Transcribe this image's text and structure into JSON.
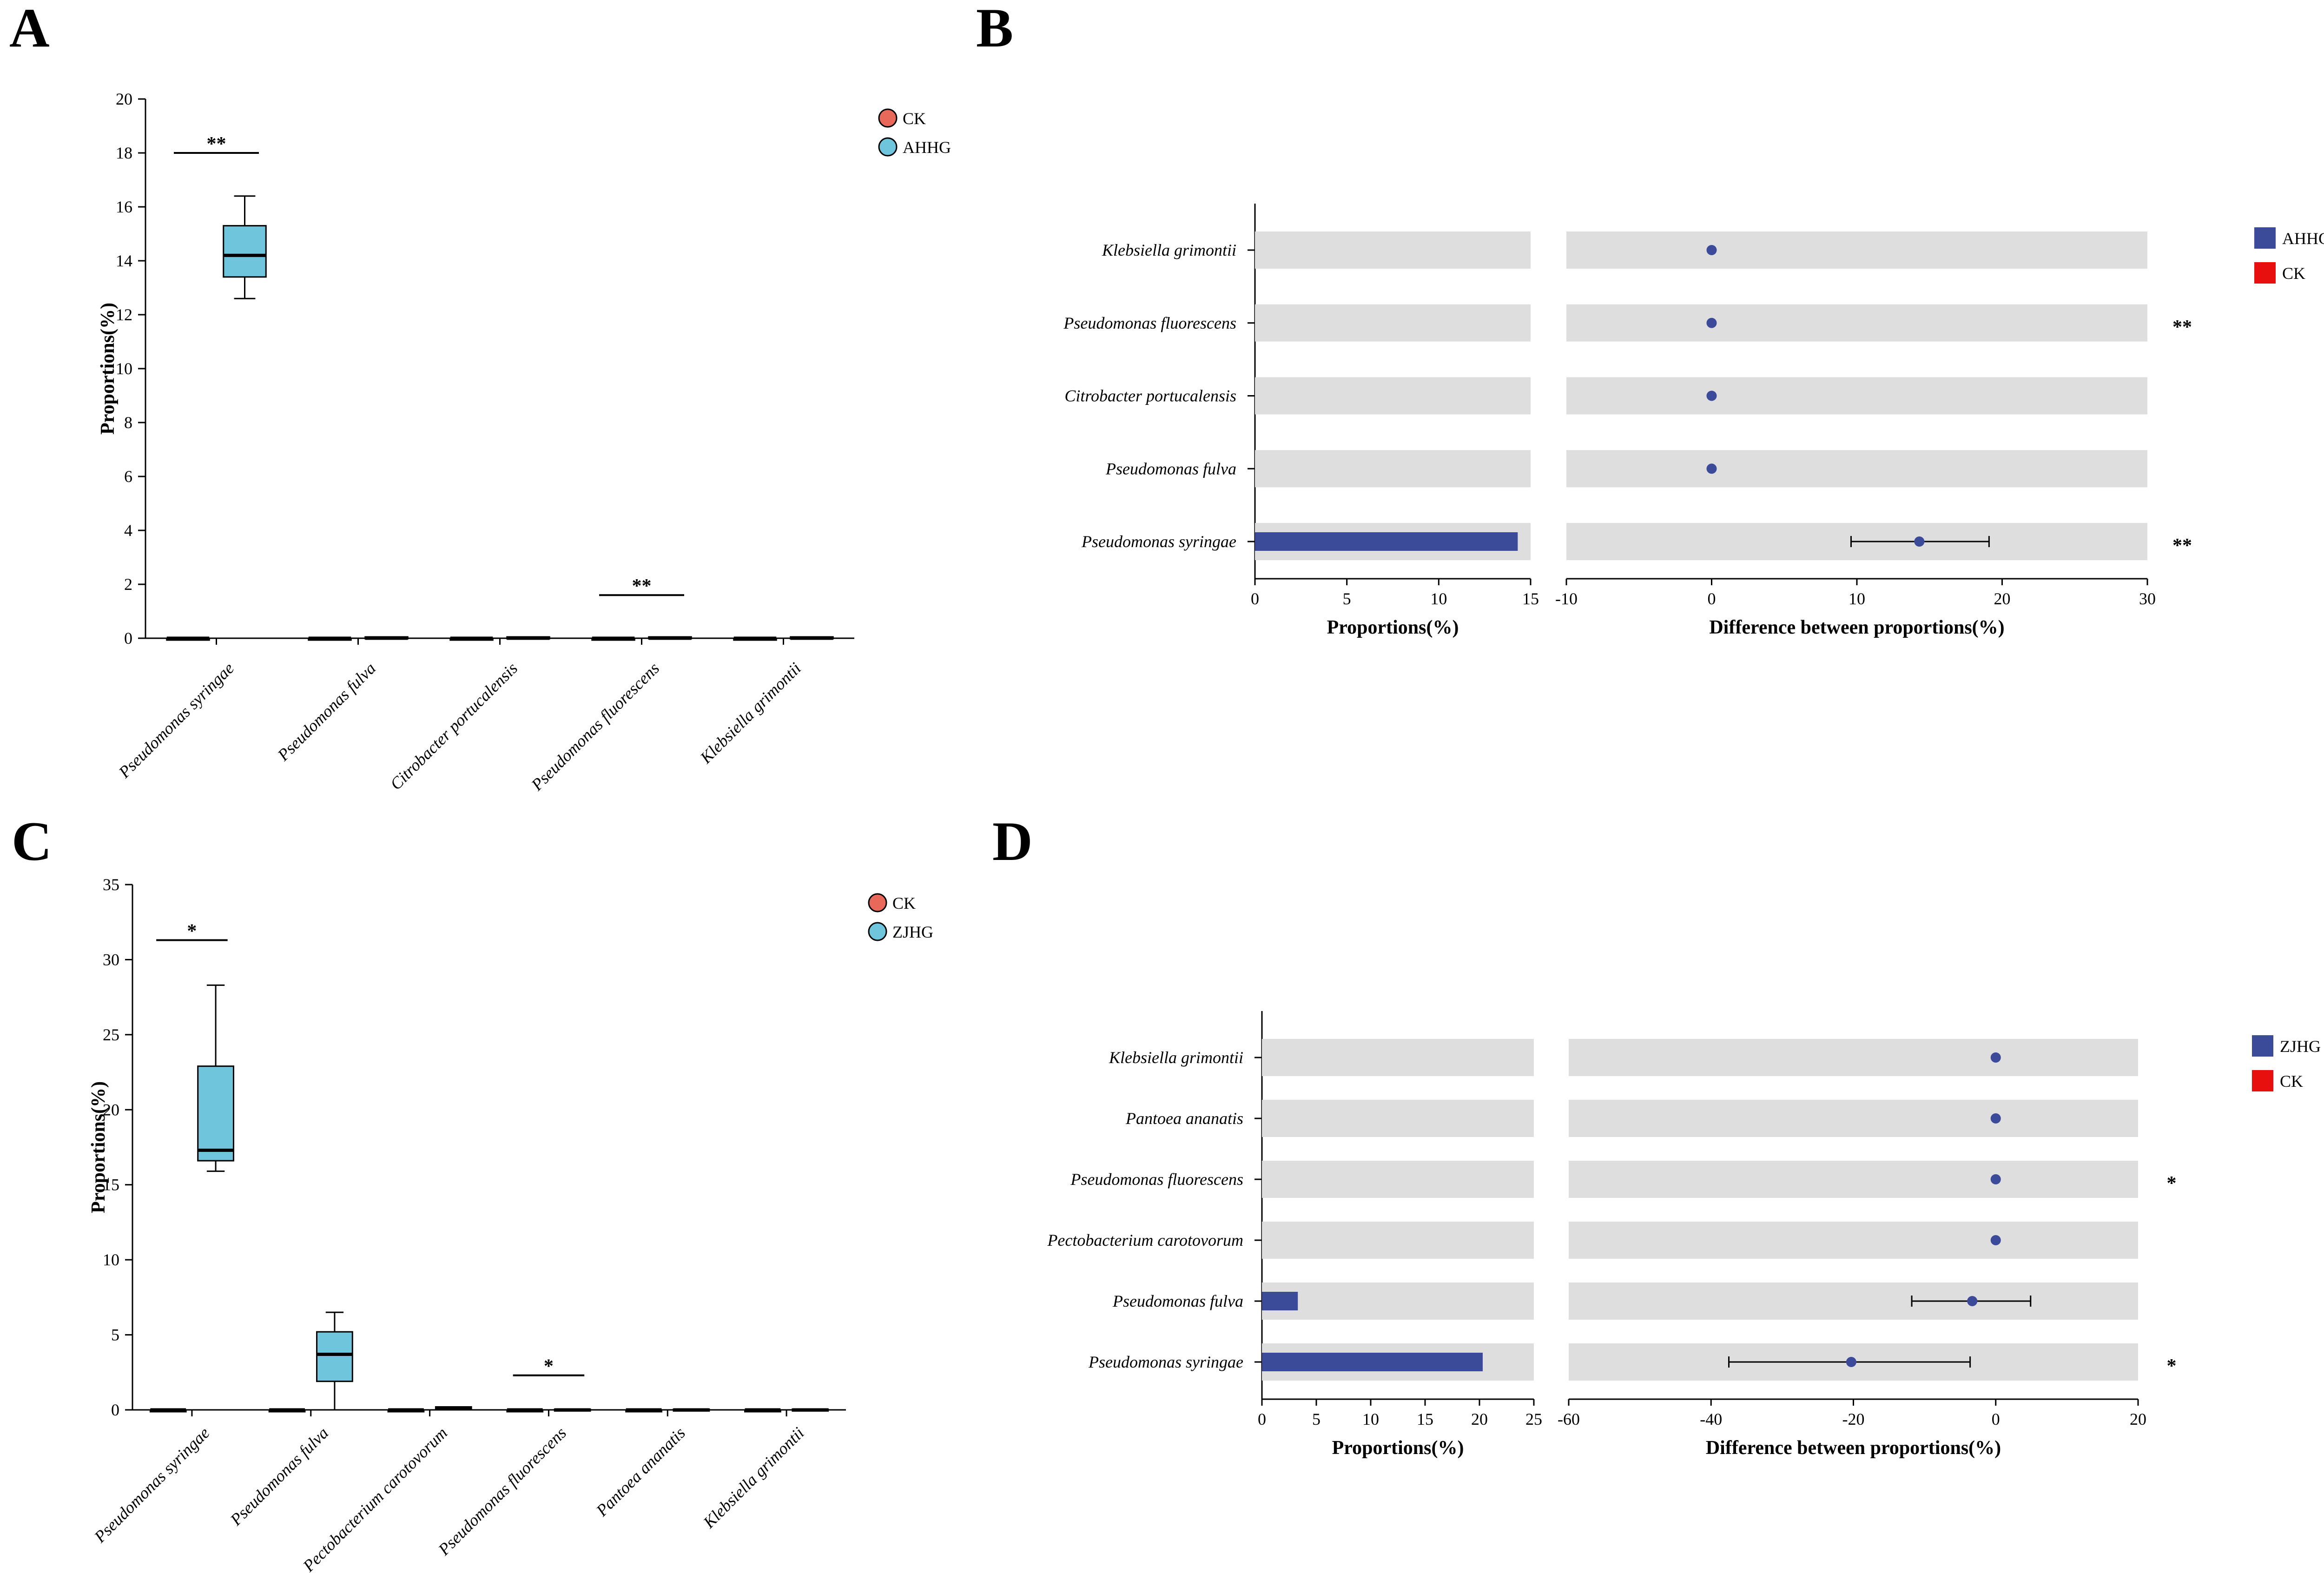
{
  "chart_data": [
    {
      "panel": "A",
      "type": "box",
      "title": "",
      "xlabel": "",
      "ylabel": "Proportions(%)",
      "ylim": [
        0,
        20
      ],
      "yticks": [
        0,
        2,
        4,
        6,
        8,
        10,
        12,
        14,
        16,
        18,
        20
      ],
      "categories": [
        "Pseudomonas syringae",
        "Pseudomonas fulva",
        "Citrobacter portucalensis",
        "Pseudomonas fluorescens",
        "Klebsiella grimontii"
      ],
      "legend": {
        "position": "top-right",
        "entries": [
          {
            "name": "CK",
            "color": "#e8695a"
          },
          {
            "name": "AHHG",
            "color": "#6fc5dc"
          }
        ]
      },
      "series": [
        {
          "name": "CK",
          "color": "#e8695a",
          "boxes": [
            {
              "min": 0,
              "q1": 0,
              "median": 0,
              "q3": 0,
              "max": 0
            },
            {
              "min": 0,
              "q1": 0,
              "median": 0,
              "q3": 0,
              "max": 0
            },
            {
              "min": 0,
              "q1": 0,
              "median": 0,
              "q3": 0,
              "max": 0
            },
            {
              "min": 0,
              "q1": 0,
              "median": 0,
              "q3": 0,
              "max": 0
            },
            {
              "min": 0,
              "q1": 0,
              "median": 0,
              "q3": 0,
              "max": 0
            }
          ]
        },
        {
          "name": "AHHG",
          "color": "#6fc5dc",
          "boxes": [
            {
              "min": 12.6,
              "q1": 13.4,
              "median": 14.2,
              "q3": 15.3,
              "max": 16.4
            },
            {
              "min": 0,
              "q1": 0,
              "median": 0,
              "q3": 0.05,
              "max": 0.05
            },
            {
              "min": 0,
              "q1": 0,
              "median": 0,
              "q3": 0.05,
              "max": 0.05
            },
            {
              "min": 0,
              "q1": 0,
              "median": 0,
              "q3": 0.05,
              "max": 0.05
            },
            {
              "min": 0,
              "q1": 0,
              "median": 0,
              "q3": 0.05,
              "max": 0.05
            }
          ]
        }
      ],
      "significance": [
        {
          "category": "Pseudomonas syringae",
          "label": "**",
          "y": 18
        },
        {
          "category": "Pseudomonas fluorescens",
          "label": "**",
          "y": 1.6
        }
      ]
    },
    {
      "panel": "B",
      "type": "extended-error-bar",
      "title": "",
      "categories": [
        "Klebsiella grimontii",
        "Pseudomonas fluorescens",
        "Citrobacter portucalensis",
        "Pseudomonas fulva",
        "Pseudomonas syringae"
      ],
      "left": {
        "xlabel": "Proportions(%)",
        "xlim": [
          0,
          15
        ],
        "xticks": [
          0,
          5,
          10,
          15
        ],
        "series": [
          {
            "name": "AHHG",
            "color": "#3c4a9a",
            "values": [
              0,
              0,
              0,
              0,
              14.3
            ]
          },
          {
            "name": "CK",
            "color": "#e8100f",
            "values": [
              0,
              0,
              0,
              0,
              0
            ]
          }
        ]
      },
      "right": {
        "xlabel": "Difference between proportions(%)",
        "xlim": [
          -10,
          30
        ],
        "xticks": [
          -10,
          0,
          10,
          20,
          30
        ],
        "points": [
          {
            "diff": 0,
            "ci": [
              0,
              0
            ]
          },
          {
            "diff": 0,
            "ci": [
              0,
              0
            ]
          },
          {
            "diff": 0,
            "ci": [
              0,
              0
            ]
          },
          {
            "diff": 0,
            "ci": [
              0,
              0
            ]
          },
          {
            "diff": 14.3,
            "ci": [
              9.6,
              19.1
            ]
          }
        ]
      },
      "significance": [
        "",
        "**",
        "",
        "",
        "**"
      ],
      "legend": {
        "position": "top-right",
        "entries": [
          {
            "name": "AHHG",
            "color": "#3c4a9a"
          },
          {
            "name": "CK",
            "color": "#e8100f"
          }
        ]
      }
    },
    {
      "panel": "C",
      "type": "box",
      "title": "",
      "xlabel": "",
      "ylabel": "Proportions(%)",
      "ylim": [
        0,
        35
      ],
      "yticks": [
        0,
        5,
        10,
        15,
        20,
        25,
        30,
        35
      ],
      "categories": [
        "Pseudomonas syringae",
        "Pseudomonas fulva",
        "Pectobacterium carotovorum",
        "Pseudomonas fluorescens",
        "Pantoea ananatis",
        "Klebsiella grimontii"
      ],
      "legend": {
        "position": "top-right",
        "entries": [
          {
            "name": "CK",
            "color": "#e8695a"
          },
          {
            "name": "ZJHG",
            "color": "#6fc5dc"
          }
        ]
      },
      "series": [
        {
          "name": "CK",
          "color": "#e8695a",
          "boxes": [
            {
              "min": 0,
              "q1": 0,
              "median": 0,
              "q3": 0,
              "max": 0
            },
            {
              "min": 0,
              "q1": 0,
              "median": 0,
              "q3": 0,
              "max": 0
            },
            {
              "min": 0,
              "q1": 0,
              "median": 0,
              "q3": 0,
              "max": 0
            },
            {
              "min": 0,
              "q1": 0,
              "median": 0,
              "q3": 0,
              "max": 0
            },
            {
              "min": 0,
              "q1": 0,
              "median": 0,
              "q3": 0,
              "max": 0
            },
            {
              "min": 0,
              "q1": 0,
              "median": 0,
              "q3": 0,
              "max": 0
            }
          ]
        },
        {
          "name": "ZJHG",
          "color": "#6fc5dc",
          "boxes": [
            {
              "min": 15.9,
              "q1": 16.6,
              "median": 17.3,
              "q3": 22.9,
              "max": 28.3
            },
            {
              "min": 0,
              "q1": 1.9,
              "median": 3.7,
              "q3": 5.2,
              "max": 6.5
            },
            {
              "min": 0,
              "q1": 0.05,
              "median": 0.1,
              "q3": 0.2,
              "max": 0.2
            },
            {
              "min": 0,
              "q1": 0,
              "median": 0,
              "q3": 0.05,
              "max": 0.05
            },
            {
              "min": 0,
              "q1": 0,
              "median": 0,
              "q3": 0.05,
              "max": 0.05
            },
            {
              "min": 0,
              "q1": 0,
              "median": 0,
              "q3": 0.05,
              "max": 0.05
            }
          ]
        }
      ],
      "significance": [
        {
          "category": "Pseudomonas syringae",
          "label": "*",
          "y": 31.3
        },
        {
          "category": "Pseudomonas fluorescens",
          "label": "*",
          "y": 2.3
        }
      ]
    },
    {
      "panel": "D",
      "type": "extended-error-bar",
      "title": "",
      "categories": [
        "Klebsiella grimontii",
        "Pantoea ananatis",
        "Pseudomonas fluorescens",
        "Pectobacterium carotovorum",
        "Pseudomonas fulva",
        "Pseudomonas syringae"
      ],
      "left": {
        "xlabel": "Proportions(%)",
        "xlim": [
          0,
          25
        ],
        "xticks": [
          0,
          5,
          10,
          15,
          20,
          25
        ],
        "series": [
          {
            "name": "ZJHG",
            "color": "#3c4a9a",
            "values": [
              0,
              0,
              0,
              0,
              3.3,
              20.3
            ]
          },
          {
            "name": "CK",
            "color": "#e8100f",
            "values": [
              0,
              0,
              0,
              0,
              0,
              0
            ]
          }
        ]
      },
      "right": {
        "xlabel": "Difference between proportions(%)",
        "xlim": [
          -60,
          20
        ],
        "xticks": [
          -60,
          -40,
          -20,
          0,
          20
        ],
        "points": [
          {
            "diff": 0,
            "ci": [
              0,
              0
            ]
          },
          {
            "diff": 0,
            "ci": [
              0,
              0
            ]
          },
          {
            "diff": 0,
            "ci": [
              0,
              0
            ]
          },
          {
            "diff": 0,
            "ci": [
              0,
              0
            ]
          },
          {
            "diff": -3.3,
            "ci": [
              -11.8,
              4.9
            ]
          },
          {
            "diff": -20.3,
            "ci": [
              -37.5,
              -3.6
            ]
          }
        ]
      },
      "significance": [
        "",
        "",
        "*",
        "",
        "",
        "*"
      ],
      "legend": {
        "position": "top-right",
        "entries": [
          {
            "name": "ZJHG",
            "color": "#3c4a9a"
          },
          {
            "name": "CK",
            "color": "#e8100f"
          }
        ]
      }
    }
  ]
}
